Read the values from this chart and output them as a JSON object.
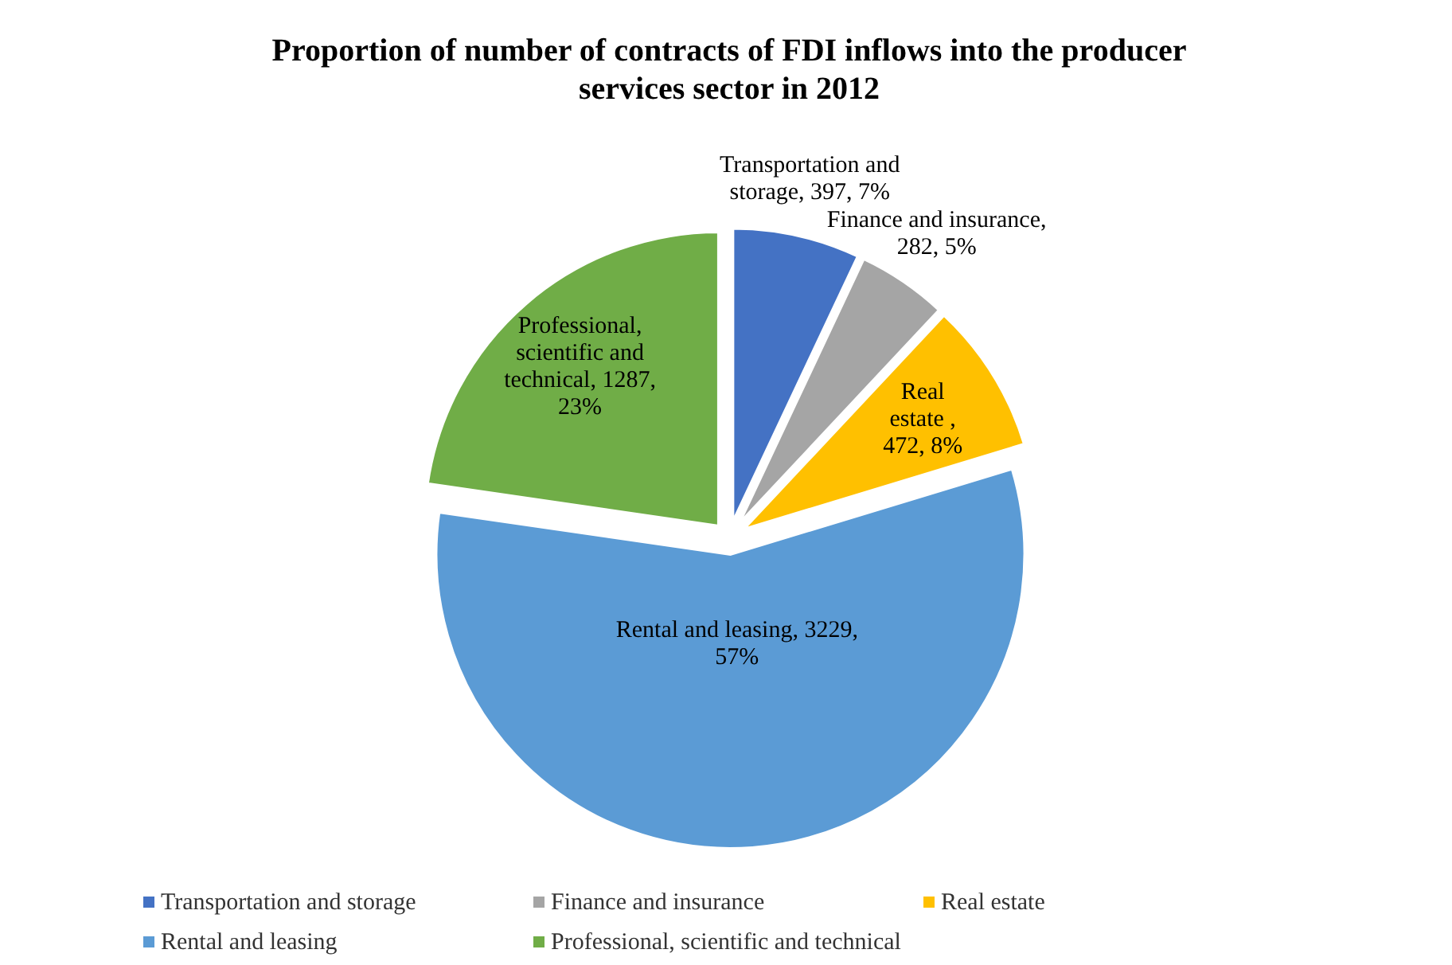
{
  "chart_data": {
    "type": "pie",
    "title": "Proportion of number of contracts of FDI inflows into the producer services sector in 2012",
    "categories": [
      "Transportation and storage",
      "Finance and insurance",
      "Real estate",
      "Rental and leasing",
      "Professional, scientific and technical"
    ],
    "values": [
      397,
      282,
      472,
      3229,
      1287
    ],
    "colors": [
      "#4472c4",
      "#a5a5a5",
      "#ffc000",
      "#5b9bd5",
      "#70ad47"
    ],
    "value_labels": [
      "Transportation and storage, 397, 7%",
      "Finance and insurance, 282, 5%",
      "Real estate , 472, 8%",
      "Rental and leasing, 3229, 57%",
      "Professional, scientific and technical, 1287, 23%"
    ],
    "legend": "bottom"
  }
}
